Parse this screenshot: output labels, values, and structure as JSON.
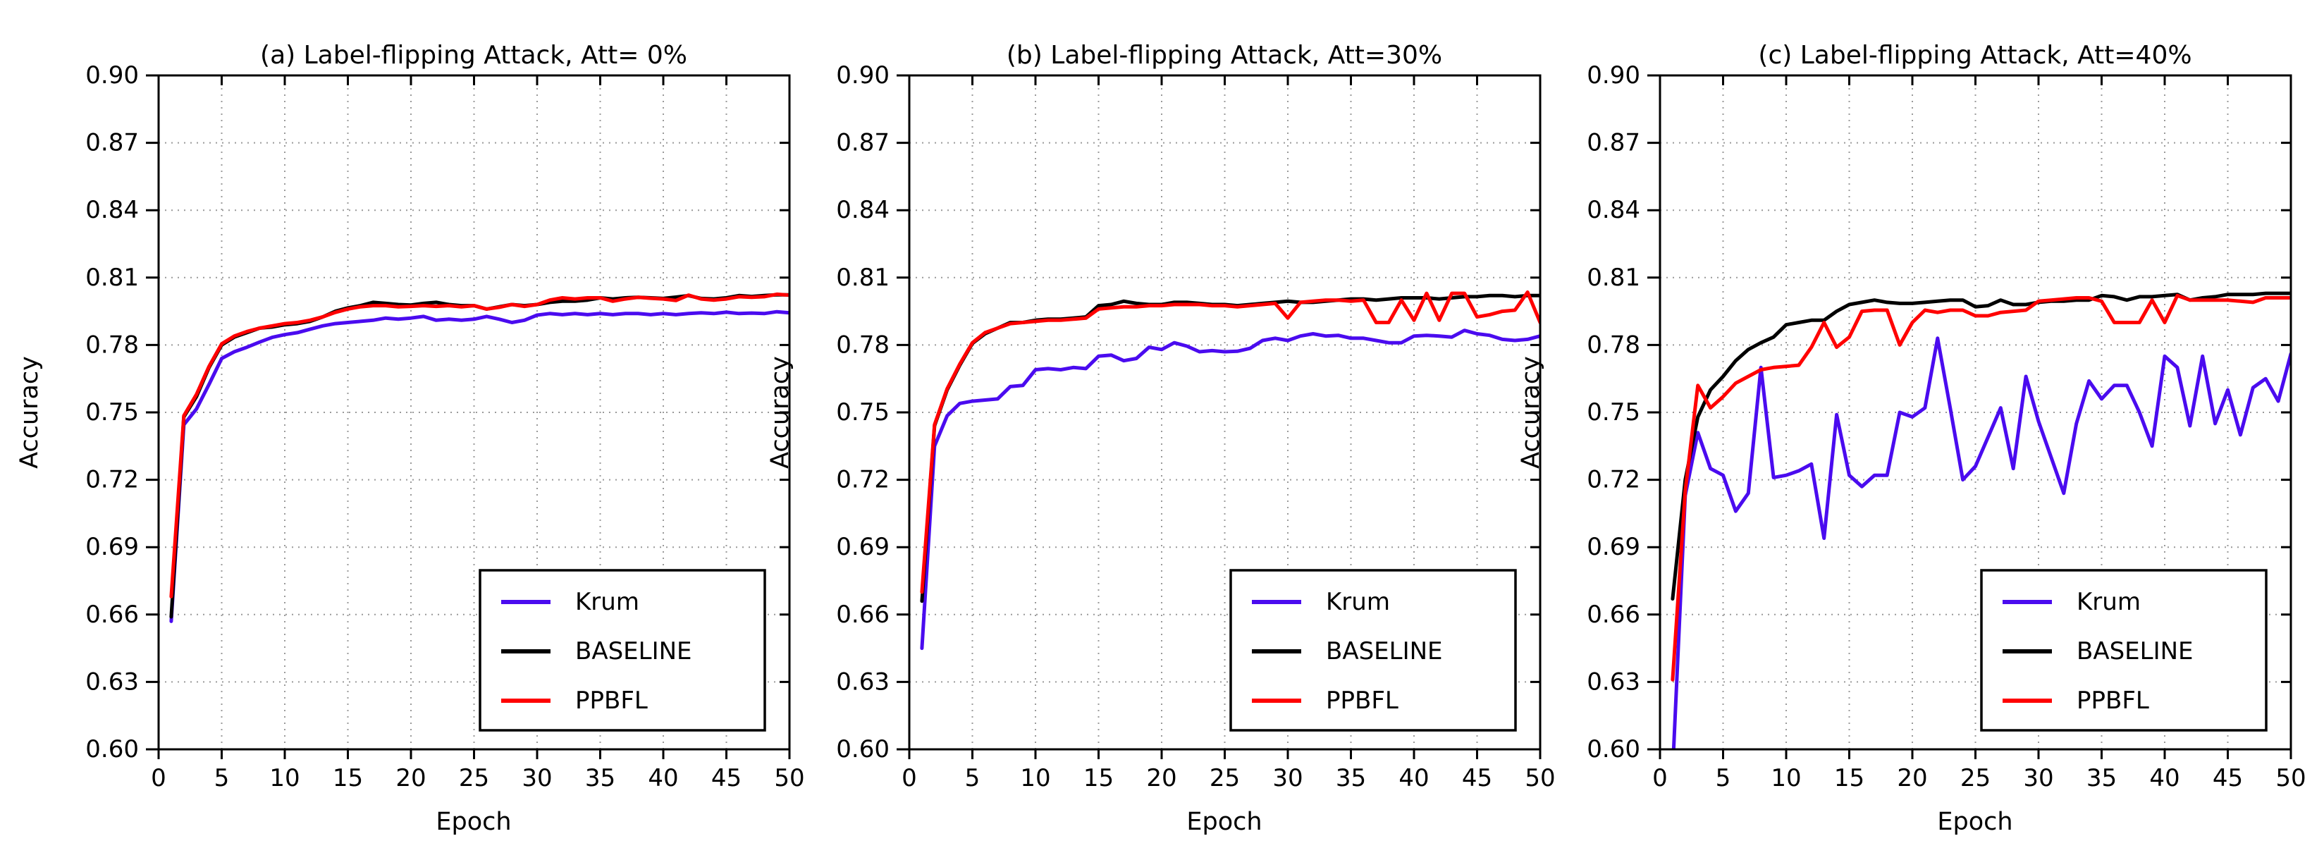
{
  "figure": {
    "background_color": "#ffffff",
    "axis_color": "#000000",
    "grid_color": "#9a9a9a",
    "tick_label_fontsize": 34,
    "title_fontsize": 36,
    "series_colors": {
      "krum": "#4a0bef",
      "baseline": "#000000",
      "ppbfl": "#ff0000"
    }
  },
  "legend": {
    "position": "lower right",
    "entries": [
      {
        "label": "Krum",
        "color": "#4a0bef"
      },
      {
        "label": "BASELINE",
        "color": "#000000"
      },
      {
        "label": "PPBFL",
        "color": "#ff0000"
      }
    ]
  },
  "axes_shared": {
    "xlabel": "Epoch",
    "ylabel": "Accuracy",
    "xlim": [
      0,
      50
    ],
    "ylim": [
      0.6,
      0.9
    ],
    "xticks": [
      0,
      5,
      10,
      15,
      20,
      25,
      30,
      35,
      40,
      45,
      50
    ],
    "ytick_labels": [
      "0.60",
      "0.63",
      "0.66",
      "0.69",
      "0.72",
      "0.75",
      "0.78",
      "0.81",
      "0.84",
      "0.87",
      "0.90"
    ],
    "yticks": [
      0.6,
      0.63,
      0.66,
      0.69,
      0.72,
      0.75,
      0.78,
      0.81,
      0.84,
      0.87,
      0.9
    ],
    "grid": "dotted"
  },
  "chart_data": [
    {
      "type": "line",
      "title": "(a) Label-flipping Attack, Att= 0%",
      "xlabel": "Epoch",
      "ylabel": "Accuracy",
      "xlim": [
        0,
        50
      ],
      "ylim": [
        0.6,
        0.9
      ],
      "x": [
        1,
        2,
        3,
        4,
        5,
        6,
        7,
        8,
        9,
        10,
        11,
        12,
        13,
        14,
        15,
        16,
        17,
        18,
        19,
        20,
        21,
        22,
        23,
        24,
        25,
        26,
        27,
        28,
        29,
        30,
        31,
        32,
        33,
        34,
        35,
        36,
        37,
        38,
        39,
        40,
        41,
        42,
        43,
        44,
        45,
        46,
        47,
        48,
        49,
        50
      ],
      "series": [
        {
          "name": "Krum",
          "values": [
            0.657,
            0.7445,
            0.7515,
            0.7625,
            0.774,
            0.777,
            0.779,
            0.7813,
            0.7834,
            0.7846,
            0.7855,
            0.787,
            0.7885,
            0.7895,
            0.79,
            0.7905,
            0.791,
            0.792,
            0.7915,
            0.792,
            0.7927,
            0.791,
            0.7915,
            0.791,
            0.7915,
            0.7927,
            0.7915,
            0.79,
            0.791,
            0.7933,
            0.794,
            0.7935,
            0.794,
            0.7935,
            0.794,
            0.7935,
            0.794,
            0.794,
            0.7935,
            0.794,
            0.7935,
            0.794,
            0.7943,
            0.794,
            0.7946,
            0.794,
            0.7942,
            0.794,
            0.7948,
            0.7943
          ]
        },
        {
          "name": "BASELINE",
          "values": [
            0.659,
            0.748,
            0.757,
            0.77,
            0.78,
            0.7835,
            0.7855,
            0.7875,
            0.788,
            0.789,
            0.7895,
            0.7905,
            0.7925,
            0.795,
            0.7965,
            0.7975,
            0.799,
            0.7985,
            0.798,
            0.7978,
            0.7985,
            0.799,
            0.798,
            0.7975,
            0.7975,
            0.796,
            0.797,
            0.798,
            0.7975,
            0.798,
            0.799,
            0.7995,
            0.7995,
            0.8,
            0.801,
            0.8005,
            0.801,
            0.8012,
            0.801,
            0.8007,
            0.8013,
            0.802,
            0.8007,
            0.8005,
            0.801,
            0.802,
            0.8016,
            0.802,
            0.8023,
            0.8023
          ]
        },
        {
          "name": "PPBFL",
          "values": [
            0.668,
            0.7485,
            0.758,
            0.7705,
            0.7805,
            0.784,
            0.786,
            0.7875,
            0.7885,
            0.7895,
            0.79,
            0.791,
            0.7925,
            0.7945,
            0.796,
            0.797,
            0.7975,
            0.7975,
            0.797,
            0.7972,
            0.7975,
            0.7972,
            0.7975,
            0.797,
            0.7975,
            0.796,
            0.7968,
            0.798,
            0.7972,
            0.798,
            0.8,
            0.801,
            0.8005,
            0.801,
            0.801,
            0.7995,
            0.8005,
            0.8012,
            0.8008,
            0.8005,
            0.7998,
            0.8022,
            0.8005,
            0.8,
            0.8005,
            0.8015,
            0.8012,
            0.8015,
            0.8026,
            0.8022
          ]
        }
      ]
    },
    {
      "type": "line",
      "title": "(b) Label-flipping Attack, Att=30%",
      "xlabel": "Epoch",
      "ylabel": "Accuracy",
      "xlim": [
        0,
        50
      ],
      "ylim": [
        0.6,
        0.9
      ],
      "x": [
        1,
        2,
        3,
        4,
        5,
        6,
        7,
        8,
        9,
        10,
        11,
        12,
        13,
        14,
        15,
        16,
        17,
        18,
        19,
        20,
        21,
        22,
        23,
        24,
        25,
        26,
        27,
        28,
        29,
        30,
        31,
        32,
        33,
        34,
        35,
        36,
        37,
        38,
        39,
        40,
        41,
        42,
        43,
        44,
        45,
        46,
        47,
        48,
        49,
        50
      ],
      "series": [
        {
          "name": "Krum",
          "values": [
            0.645,
            0.735,
            0.7485,
            0.754,
            0.755,
            0.7555,
            0.756,
            0.7615,
            0.762,
            0.769,
            0.7695,
            0.769,
            0.77,
            0.7695,
            0.775,
            0.7755,
            0.773,
            0.774,
            0.779,
            0.778,
            0.781,
            0.7795,
            0.777,
            0.7775,
            0.777,
            0.7772,
            0.7785,
            0.782,
            0.783,
            0.782,
            0.784,
            0.785,
            0.784,
            0.7843,
            0.783,
            0.783,
            0.782,
            0.781,
            0.781,
            0.784,
            0.7843,
            0.784,
            0.7835,
            0.7865,
            0.785,
            0.7843,
            0.7825,
            0.782,
            0.7825,
            0.784
          ]
        },
        {
          "name": "BASELINE",
          "values": [
            0.666,
            0.744,
            0.76,
            0.771,
            0.7807,
            0.785,
            0.7875,
            0.79,
            0.79,
            0.791,
            0.7915,
            0.7915,
            0.792,
            0.7925,
            0.7975,
            0.798,
            0.7995,
            0.7985,
            0.798,
            0.798,
            0.799,
            0.799,
            0.7985,
            0.798,
            0.798,
            0.7975,
            0.798,
            0.7985,
            0.799,
            0.7995,
            0.799,
            0.799,
            0.7995,
            0.8,
            0.8005,
            0.8005,
            0.8,
            0.8005,
            0.801,
            0.801,
            0.801,
            0.8005,
            0.801,
            0.8015,
            0.8015,
            0.802,
            0.802,
            0.8015,
            0.802,
            0.802
          ]
        },
        {
          "name": "PPBFL",
          "values": [
            0.67,
            0.7445,
            0.7605,
            0.7715,
            0.781,
            0.7855,
            0.7875,
            0.7895,
            0.79,
            0.7905,
            0.791,
            0.791,
            0.7915,
            0.792,
            0.796,
            0.7965,
            0.797,
            0.797,
            0.7975,
            0.7975,
            0.798,
            0.798,
            0.798,
            0.7975,
            0.7975,
            0.797,
            0.7975,
            0.798,
            0.7985,
            0.792,
            0.799,
            0.7995,
            0.8,
            0.8,
            0.7995,
            0.8,
            0.79,
            0.79,
            0.8,
            0.791,
            0.803,
            0.791,
            0.803,
            0.803,
            0.7925,
            0.7935,
            0.795,
            0.7955,
            0.8035,
            0.79
          ]
        }
      ]
    },
    {
      "type": "line",
      "title": "(c) Label-flipping Attack, Att=40%",
      "xlabel": "Epoch",
      "ylabel": "Accuracy",
      "xlim": [
        0,
        50
      ],
      "ylim": [
        0.6,
        0.9
      ],
      "x": [
        1,
        2,
        3,
        4,
        5,
        6,
        7,
        8,
        9,
        10,
        11,
        12,
        13,
        14,
        15,
        16,
        17,
        18,
        19,
        20,
        21,
        22,
        23,
        24,
        25,
        26,
        27,
        28,
        29,
        30,
        31,
        32,
        33,
        34,
        35,
        36,
        37,
        38,
        39,
        40,
        41,
        42,
        43,
        44,
        45,
        46,
        47,
        48,
        49,
        50
      ],
      "series": [
        {
          "name": "Krum",
          "values": [
            0.59,
            0.713,
            0.741,
            0.725,
            0.722,
            0.706,
            0.714,
            0.77,
            0.721,
            0.722,
            0.724,
            0.727,
            0.694,
            0.749,
            0.722,
            0.717,
            0.722,
            0.722,
            0.75,
            0.748,
            0.752,
            0.783,
            0.752,
            0.72,
            0.726,
            0.739,
            0.752,
            0.725,
            0.766,
            0.746,
            0.73,
            0.714,
            0.745,
            0.764,
            0.756,
            0.762,
            0.762,
            0.75,
            0.735,
            0.775,
            0.77,
            0.744,
            0.775,
            0.745,
            0.76,
            0.74,
            0.761,
            0.765,
            0.755,
            0.776
          ]
        },
        {
          "name": "BASELINE",
          "values": [
            0.667,
            0.72,
            0.748,
            0.76,
            0.766,
            0.773,
            0.778,
            0.781,
            0.7835,
            0.789,
            0.79,
            0.791,
            0.791,
            0.795,
            0.798,
            0.799,
            0.8,
            0.799,
            0.7985,
            0.7985,
            0.799,
            0.7995,
            0.8,
            0.8,
            0.797,
            0.7975,
            0.8,
            0.798,
            0.798,
            0.799,
            0.7995,
            0.7995,
            0.8,
            0.8,
            0.802,
            0.8015,
            0.8,
            0.8015,
            0.8015,
            0.802,
            0.8025,
            0.8,
            0.801,
            0.8015,
            0.8025,
            0.8025,
            0.8025,
            0.803,
            0.803,
            0.803
          ]
        },
        {
          "name": "PPBFL",
          "values": [
            0.631,
            0.715,
            0.762,
            0.752,
            0.757,
            0.763,
            0.766,
            0.769,
            0.77,
            0.7705,
            0.771,
            0.779,
            0.79,
            0.779,
            0.7835,
            0.795,
            0.7955,
            0.7955,
            0.78,
            0.79,
            0.7955,
            0.7945,
            0.7955,
            0.7955,
            0.793,
            0.793,
            0.7945,
            0.795,
            0.7955,
            0.7995,
            0.8,
            0.8005,
            0.801,
            0.801,
            0.7995,
            0.79,
            0.79,
            0.79,
            0.8,
            0.79,
            0.802,
            0.8,
            0.8,
            0.8,
            0.8,
            0.7995,
            0.799,
            0.801,
            0.801,
            0.801
          ]
        }
      ]
    }
  ]
}
